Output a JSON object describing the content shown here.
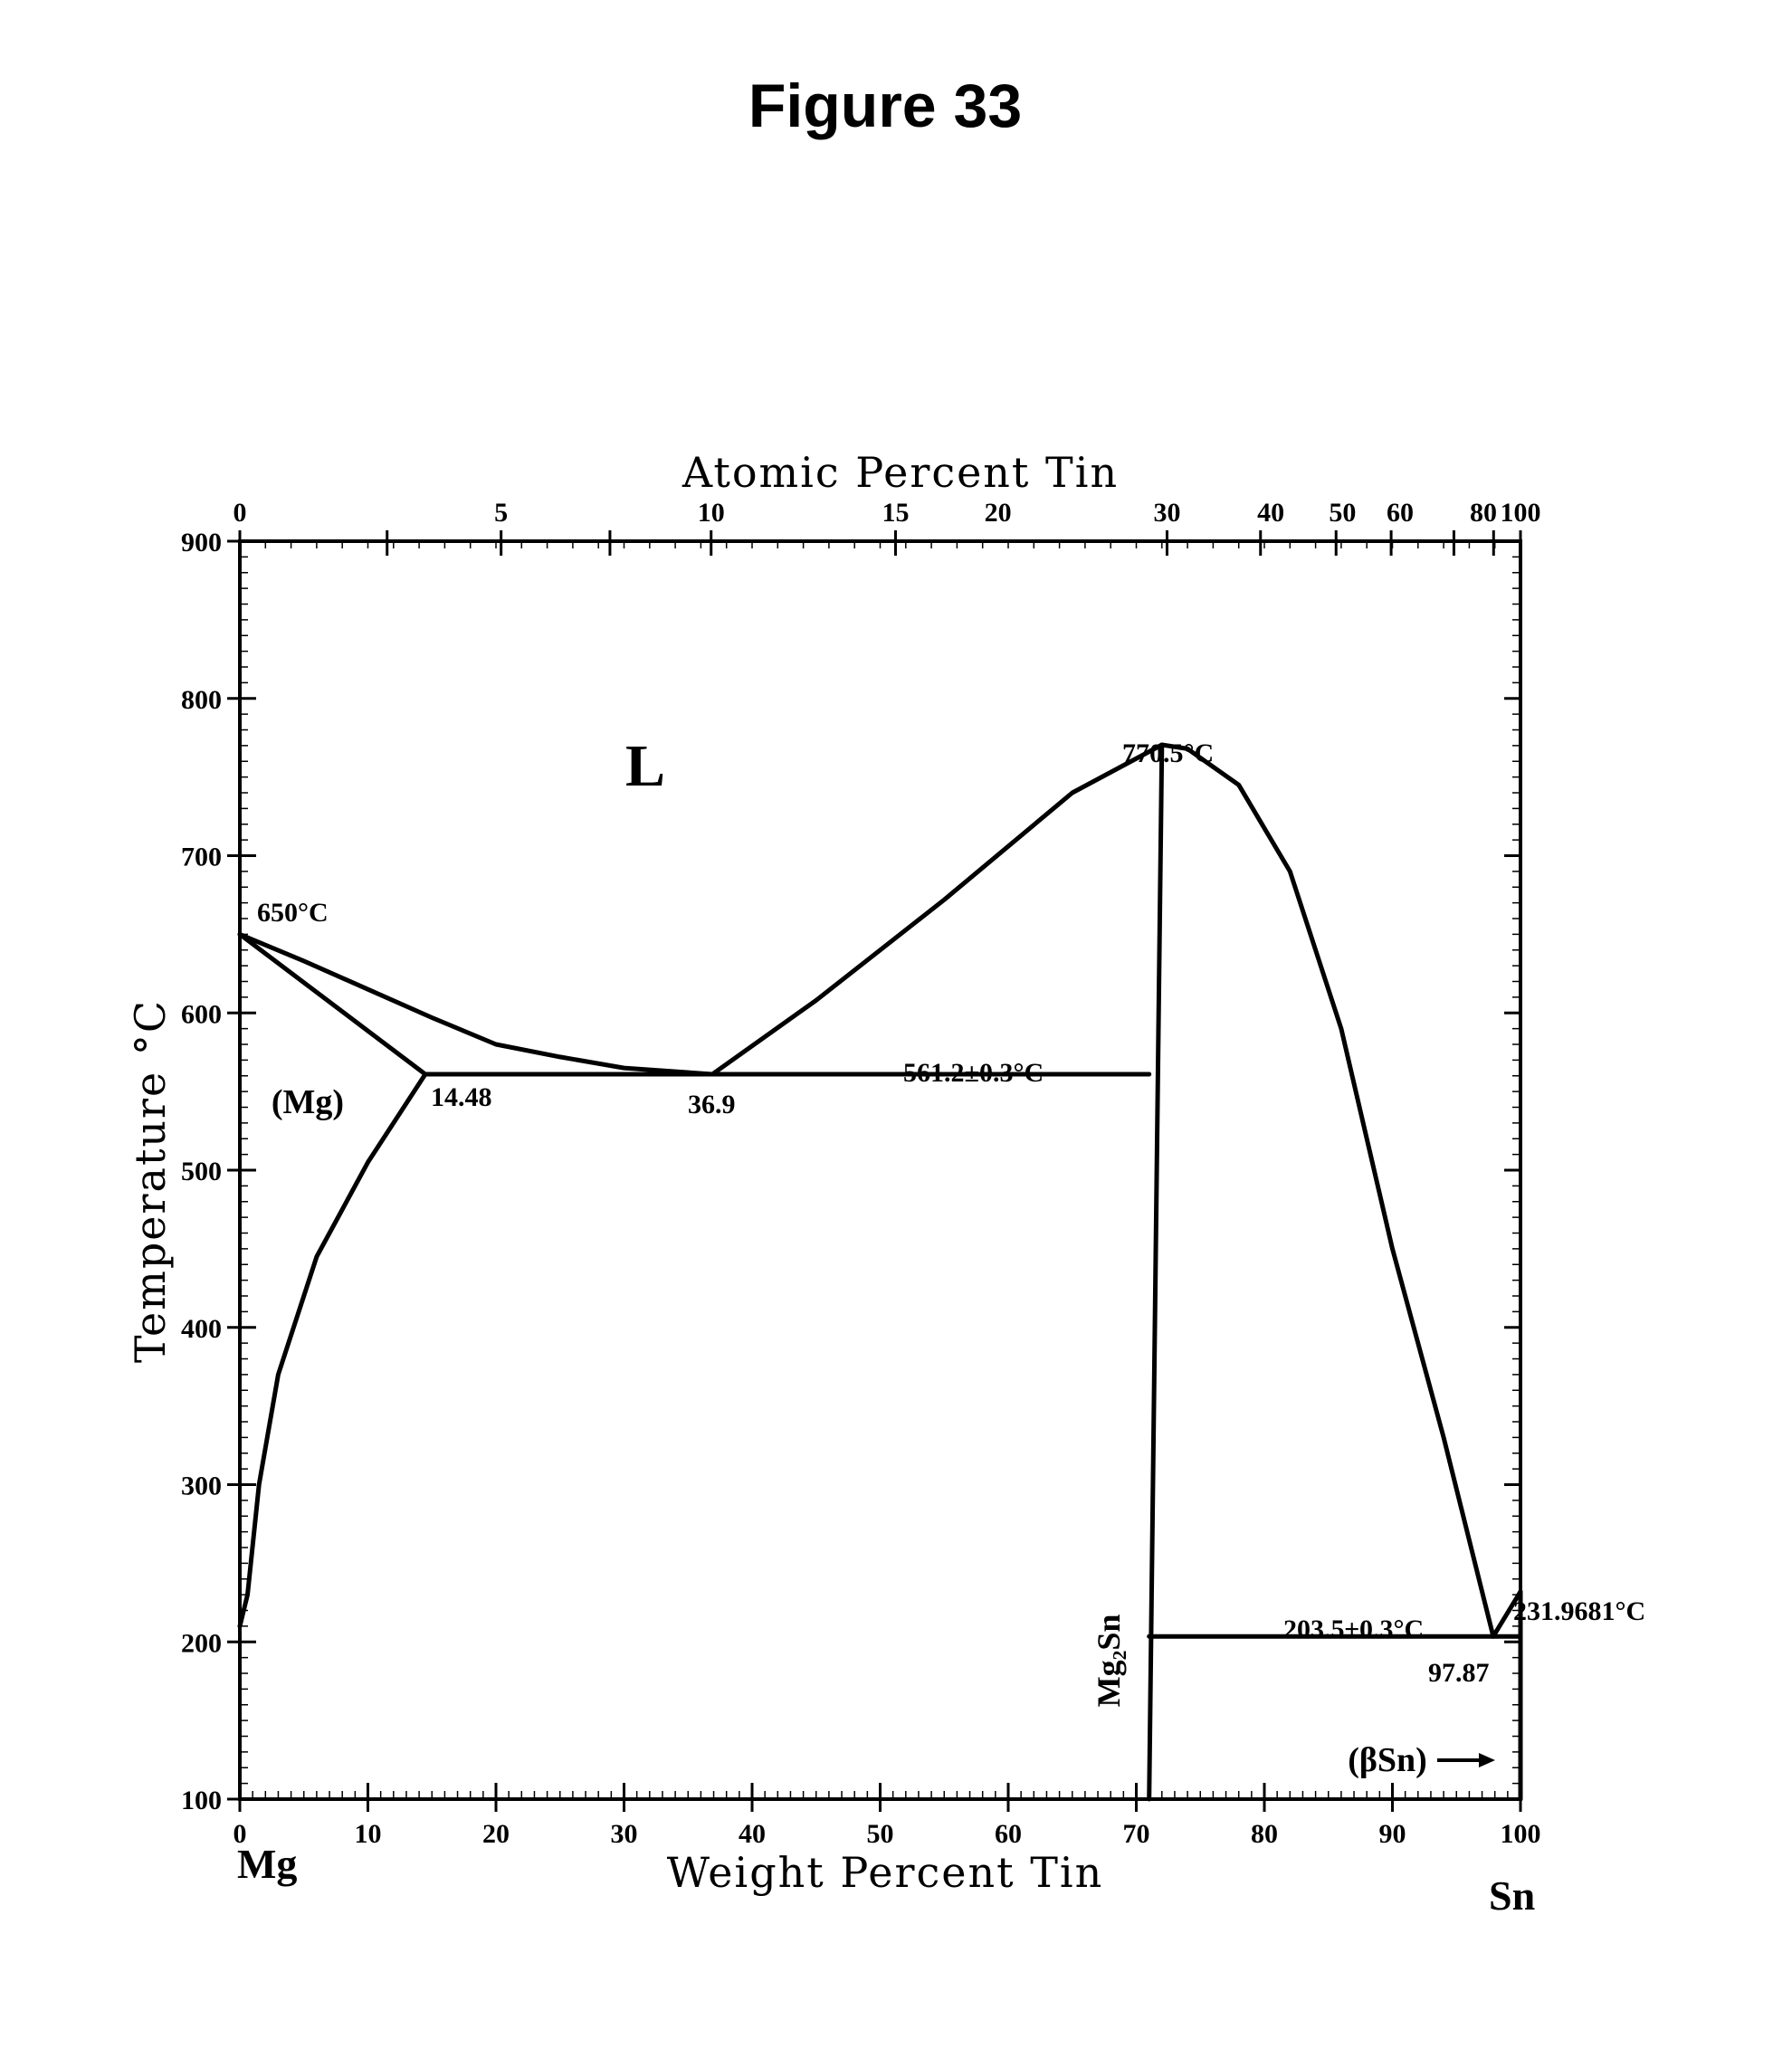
{
  "figure_title": "Figure 33",
  "chart_data": {
    "type": "line",
    "title": "",
    "xlabel": "Weight Percent Tin",
    "x2label": "Atomic Percent Tin",
    "ylabel": "Temperature °C",
    "xlim": [
      0,
      100
    ],
    "ylim": [
      100,
      900
    ],
    "x_ticks": [
      0,
      10,
      20,
      30,
      40,
      50,
      60,
      70,
      80,
      90,
      100
    ],
    "y_ticks": [
      100,
      200,
      300,
      400,
      500,
      600,
      700,
      800,
      900
    ],
    "x_tick_labels": [
      "0",
      "10",
      "20",
      "30",
      "40",
      "50",
      "60",
      "70",
      "80",
      "90",
      "100"
    ],
    "y_tick_labels": [
      "100",
      "200",
      "300",
      "400",
      "500",
      "600",
      "700",
      "800",
      "900"
    ],
    "x2_ticks_wt": [
      0,
      11.5,
      20.4,
      28.9,
      36.8,
      51.2,
      72.4,
      79.7,
      85.6,
      89.9,
      94.8,
      97.9,
      100
    ],
    "x2_tick_labels": [
      "0",
      "5",
      "10",
      "15",
      "20",
      "30",
      "40",
      "50",
      "60",
      "80",
      "100"
    ],
    "x2_tick_label_positions_wt": [
      0,
      20.4,
      36.8,
      51.2,
      59.2,
      72.4,
      80.5,
      86.1,
      90.6,
      97.1,
      100
    ],
    "end_labels": {
      "left": "Mg",
      "right": "Sn"
    },
    "grid": false,
    "phase_labels": {
      "liquid": "L",
      "mg_solid": "(Mg)",
      "compound": "Mg₂Sn",
      "sn_solid": "(βSn)"
    },
    "series": [
      {
        "values": [
          [
            0,
            650
          ],
          [
            5,
            633
          ],
          [
            10,
            615
          ],
          [
            15,
            597
          ],
          [
            20,
            580
          ],
          [
            25,
            572
          ],
          [
            30,
            565
          ],
          [
            36.9,
            561
          ]
        ]
      },
      {
        "values": [
          [
            0,
            650
          ],
          [
            14.48,
            561
          ]
        ]
      },
      {
        "values": [
          [
            14.48,
            561
          ],
          [
            10,
            505
          ],
          [
            6,
            445
          ],
          [
            3,
            370
          ],
          [
            1.5,
            300
          ],
          [
            0.6,
            230
          ],
          [
            0,
            210
          ]
        ]
      },
      {
        "values": [
          [
            36.9,
            561
          ],
          [
            45,
            608
          ],
          [
            55,
            672
          ],
          [
            65,
            740
          ],
          [
            72,
            770.5
          ]
        ]
      },
      {
        "values": [
          [
            72,
            770.5
          ],
          [
            74,
            768
          ],
          [
            78,
            745
          ],
          [
            82,
            690
          ],
          [
            86,
            590
          ],
          [
            90,
            450
          ],
          [
            94,
            330
          ],
          [
            97.87,
            203.5
          ]
        ]
      },
      {
        "values": [
          [
            97.87,
            203.5
          ],
          [
            100,
            231.9681
          ]
        ]
      },
      {
        "values": [
          [
            14.48,
            561
          ],
          [
            71,
            561
          ]
        ]
      },
      {
        "values": [
          [
            71,
            203.5
          ],
          [
            100,
            203.5
          ]
        ]
      },
      {
        "values": [
          [
            71,
            100
          ],
          [
            72,
            770.5
          ]
        ]
      },
      {
        "values": [
          [
            100,
            100
          ],
          [
            100,
            231.9681
          ]
        ]
      }
    ],
    "annotations": {
      "mg_melting": "650°C",
      "eutectic1_temp": "561.2±0.3°C",
      "solubility": "14.48",
      "eutectic1_comp": "36.9",
      "compound_melting": "770.5°C",
      "eutectic2_temp": "203.5±0.3°C",
      "eutectic2_comp": "97.87",
      "sn_melting": "231.9681°C"
    }
  }
}
